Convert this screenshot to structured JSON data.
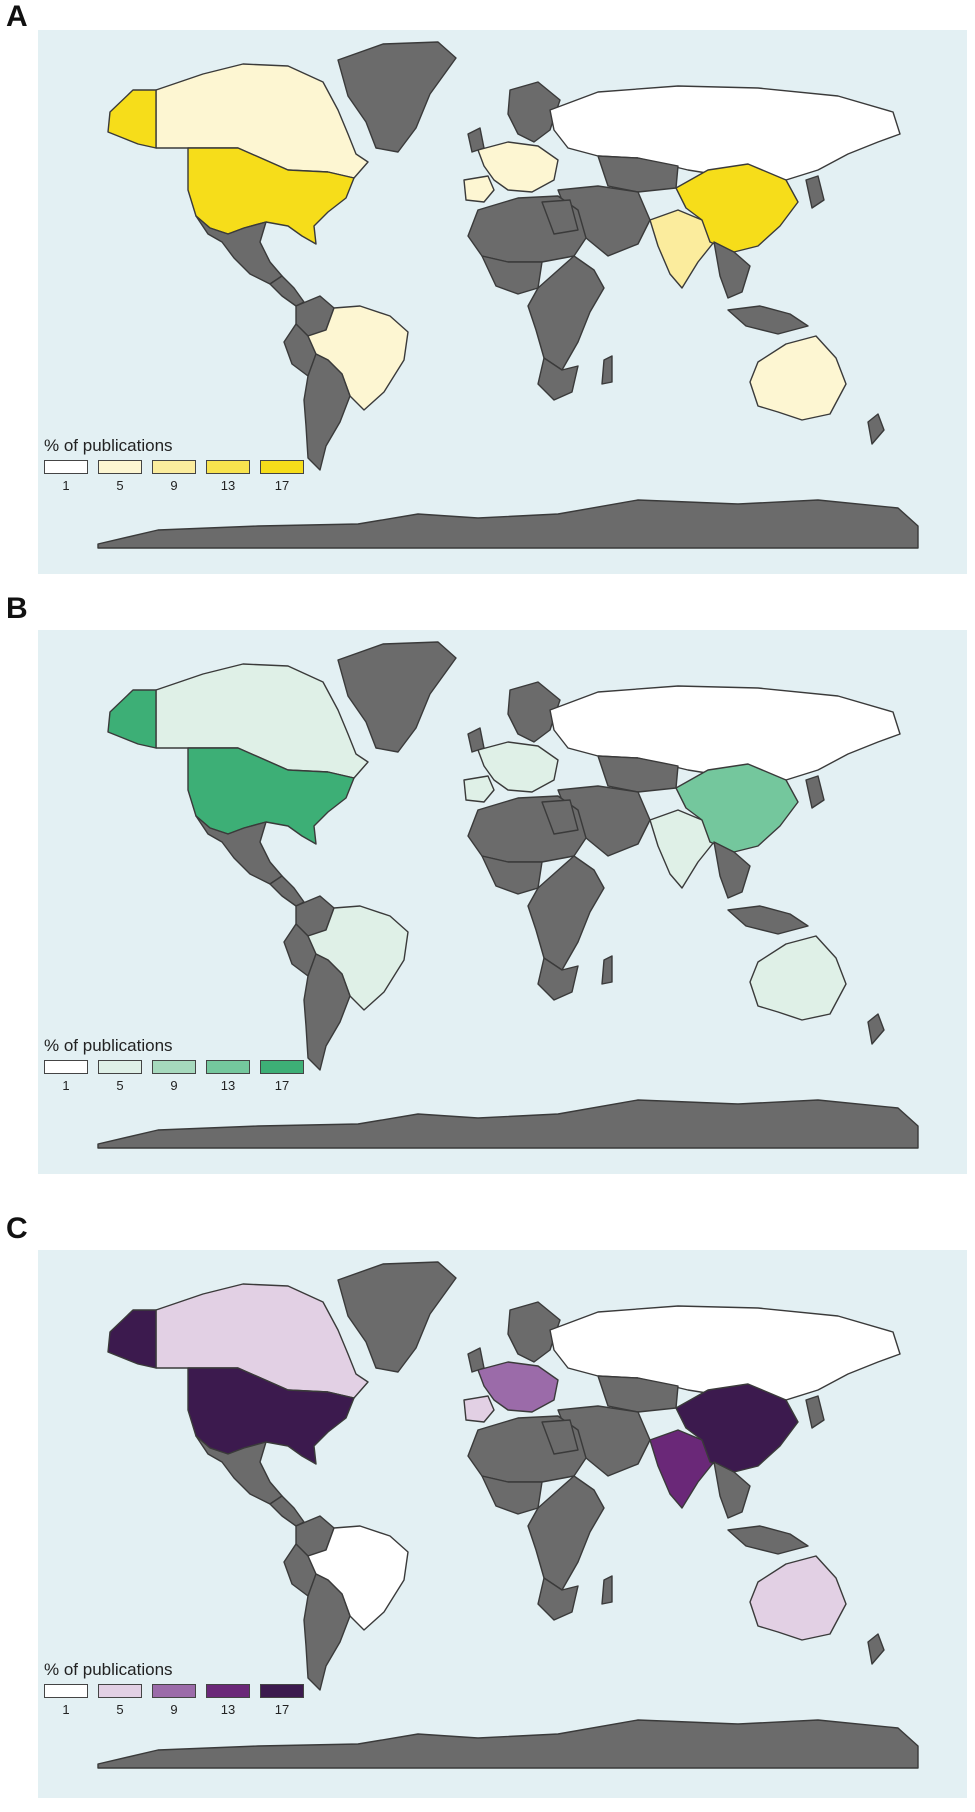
{
  "legend_title": "% of publications",
  "legend_ticks": [
    "1",
    "5",
    "9",
    "13",
    "17"
  ],
  "land_color": "#6b6b6b",
  "ocean_color": "#e3f0f3",
  "panels": [
    {
      "letter": "A",
      "scale": [
        "#ffffff",
        "#fdf6d2",
        "#fbec9d",
        "#f8e34e",
        "#f6dd1a"
      ],
      "countries": {
        "USA": 17,
        "China": 16,
        "Canada": 5,
        "Alaska": 14,
        "Brazil": 5,
        "India": 7,
        "Australia": 4,
        "Russia": 1,
        "Europe": 4,
        "Spain": 5
      }
    },
    {
      "letter": "B",
      "scale": [
        "#ffffff",
        "#dff0e7",
        "#a6d9bd",
        "#74c79d",
        "#3daf76"
      ],
      "countries": {
        "USA": 16,
        "China": 11,
        "Alaska": 15,
        "Canada": 4,
        "India": 5,
        "Australia": 3,
        "Brazil": 3,
        "Russia": 1,
        "Europe": 3,
        "Spain": 3
      }
    },
    {
      "letter": "C",
      "scale": [
        "#ffffff",
        "#e2d0e4",
        "#9b6ba9",
        "#6a2878",
        "#3c1a4e"
      ],
      "countries": {
        "USA": 15,
        "China": 17,
        "Alaska": 14,
        "India": 10,
        "Canada": 5,
        "Australia": 5,
        "Europe": 7,
        "Spain": 5,
        "Russia": 1,
        "Brazil": 1
      }
    }
  ]
}
